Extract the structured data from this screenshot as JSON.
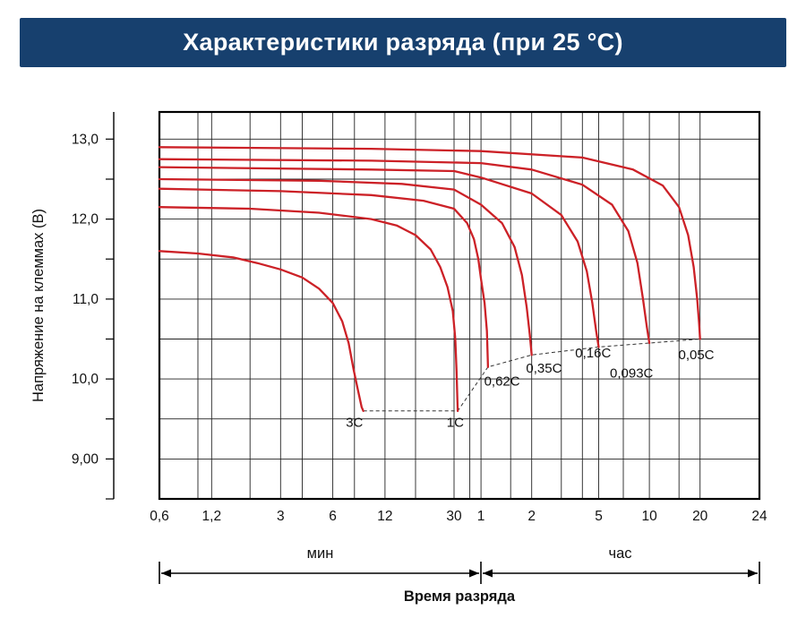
{
  "header": {
    "title": "Характеристики разряда (при 25 °С)",
    "bg_color": "#17406E",
    "text_color": "#FFFFFF"
  },
  "chart_data": {
    "type": "line",
    "title": "Характеристики разряда (при 25 °С)",
    "xlabel": "Время разряда",
    "ylabel": "Напряжение на клеммах (В)",
    "x_unit_left": "мин",
    "x_unit_right": "час",
    "x_scale": "log, broken axis: 0.6–30 мин then 1–24 час",
    "grid": true,
    "legend": "labels at curve ends",
    "ylim": [
      8.5,
      13.34
    ],
    "line_color": "#CC2127",
    "grid_color": "#222222",
    "y_ticks": [
      {
        "label": "13,0",
        "value": 13.0
      },
      {
        "label": "12,0",
        "value": 12.0
      },
      {
        "label": "11,0",
        "value": 11.0
      },
      {
        "label": "10,0",
        "value": 10.0
      },
      {
        "label": "9,00",
        "value": 9.0
      }
    ],
    "y_gridlines": [
      9.0,
      9.5,
      10.0,
      10.5,
      11.0,
      11.5,
      12.0,
      12.5,
      13.0
    ],
    "y_ruler_ticks": [
      8.5,
      9.0,
      9.5,
      10.0,
      10.5,
      11.0,
      11.5,
      12.0,
      12.5,
      13.0
    ],
    "x_ticks": [
      {
        "label": "0,6",
        "minutes": 0.6
      },
      {
        "label": "1,2",
        "minutes": 1.2
      },
      {
        "label": "3",
        "minutes": 3
      },
      {
        "label": "6",
        "minutes": 6
      },
      {
        "label": "12",
        "minutes": 12
      },
      {
        "label": "30",
        "minutes": 30
      },
      {
        "label": "1",
        "minutes": 60
      },
      {
        "label": "2",
        "minutes": 120
      },
      {
        "label": "5",
        "minutes": 300
      },
      {
        "label": "10",
        "minutes": 600
      },
      {
        "label": "20",
        "minutes": 1200
      },
      {
        "label": "24",
        "minutes": 1440
      }
    ],
    "x_gridlines_minutes": [
      1,
      1.2,
      2,
      3,
      4,
      6,
      8,
      12,
      18,
      30,
      45,
      60,
      90,
      120,
      180,
      240,
      300,
      420,
      600,
      900,
      1200,
      1440
    ],
    "cutoff_line": [
      [
        9,
        9.6
      ],
      [
        33,
        9.6
      ],
      [
        66,
        10.15
      ],
      [
        120,
        10.3
      ],
      [
        300,
        10.4
      ],
      [
        600,
        10.45
      ],
      [
        1200,
        10.5
      ]
    ],
    "series": [
      {
        "name": "0,05C",
        "points": [
          [
            0.6,
            12.9
          ],
          [
            10,
            12.88
          ],
          [
            60,
            12.85
          ],
          [
            240,
            12.77
          ],
          [
            480,
            12.62
          ],
          [
            720,
            12.42
          ],
          [
            900,
            12.15
          ],
          [
            1020,
            11.8
          ],
          [
            1100,
            11.4
          ],
          [
            1155,
            11.0
          ],
          [
            1185,
            10.7
          ],
          [
            1200,
            10.5
          ]
        ],
        "label_at": [
          1140,
          10.25
        ]
      },
      {
        "name": "0,093C",
        "points": [
          [
            0.6,
            12.75
          ],
          [
            10,
            12.73
          ],
          [
            60,
            12.7
          ],
          [
            120,
            12.62
          ],
          [
            240,
            12.43
          ],
          [
            360,
            12.18
          ],
          [
            450,
            11.85
          ],
          [
            510,
            11.45
          ],
          [
            550,
            11.0
          ],
          [
            580,
            10.65
          ],
          [
            600,
            10.45
          ]
        ],
        "label_at": [
          470,
          10.02
        ]
      },
      {
        "name": "0,16C",
        "points": [
          [
            0.6,
            12.65
          ],
          [
            10,
            12.62
          ],
          [
            30,
            12.6
          ],
          [
            60,
            12.52
          ],
          [
            120,
            12.32
          ],
          [
            180,
            12.05
          ],
          [
            225,
            11.72
          ],
          [
            255,
            11.35
          ],
          [
            275,
            10.95
          ],
          [
            290,
            10.6
          ],
          [
            300,
            10.4
          ]
        ],
        "label_at": [
          278,
          10.27
        ]
      },
      {
        "name": "0,35C",
        "points": [
          [
            0.6,
            12.5
          ],
          [
            5,
            12.48
          ],
          [
            15,
            12.44
          ],
          [
            30,
            12.37
          ],
          [
            60,
            12.18
          ],
          [
            80,
            11.95
          ],
          [
            95,
            11.65
          ],
          [
            105,
            11.3
          ],
          [
            112,
            10.9
          ],
          [
            117,
            10.55
          ],
          [
            120,
            10.3
          ]
        ],
        "label_at": [
          142,
          10.08
        ]
      },
      {
        "name": "0,62C",
        "points": [
          [
            0.6,
            12.38
          ],
          [
            3,
            12.35
          ],
          [
            10,
            12.3
          ],
          [
            20,
            12.23
          ],
          [
            30,
            12.13
          ],
          [
            42,
            11.95
          ],
          [
            50,
            11.75
          ],
          [
            56,
            11.5
          ],
          [
            60,
            11.25
          ],
          [
            63,
            10.95
          ],
          [
            65,
            10.6
          ],
          [
            66,
            10.15
          ]
        ],
        "label_at": [
          80,
          9.92
        ]
      },
      {
        "name": "1C",
        "points": [
          [
            0.6,
            12.15
          ],
          [
            2,
            12.13
          ],
          [
            5,
            12.08
          ],
          [
            10,
            12.0
          ],
          [
            14,
            11.92
          ],
          [
            18,
            11.8
          ],
          [
            22,
            11.62
          ],
          [
            25,
            11.4
          ],
          [
            27.5,
            11.15
          ],
          [
            29.5,
            10.85
          ],
          [
            31,
            10.5
          ],
          [
            32,
            10.1
          ],
          [
            32.7,
            9.75
          ],
          [
            33,
            9.6
          ]
        ],
        "label_at": [
          31,
          9.4
        ]
      },
      {
        "name": "3C",
        "points": [
          [
            0.6,
            11.6
          ],
          [
            1,
            11.57
          ],
          [
            1.6,
            11.52
          ],
          [
            2.2,
            11.45
          ],
          [
            3,
            11.37
          ],
          [
            4,
            11.27
          ],
          [
            5,
            11.13
          ],
          [
            6,
            10.95
          ],
          [
            6.8,
            10.72
          ],
          [
            7.4,
            10.45
          ],
          [
            7.9,
            10.12
          ],
          [
            8.4,
            9.85
          ],
          [
            8.8,
            9.65
          ],
          [
            9,
            9.6
          ]
        ],
        "label_at": [
          8,
          9.4
        ]
      }
    ]
  }
}
